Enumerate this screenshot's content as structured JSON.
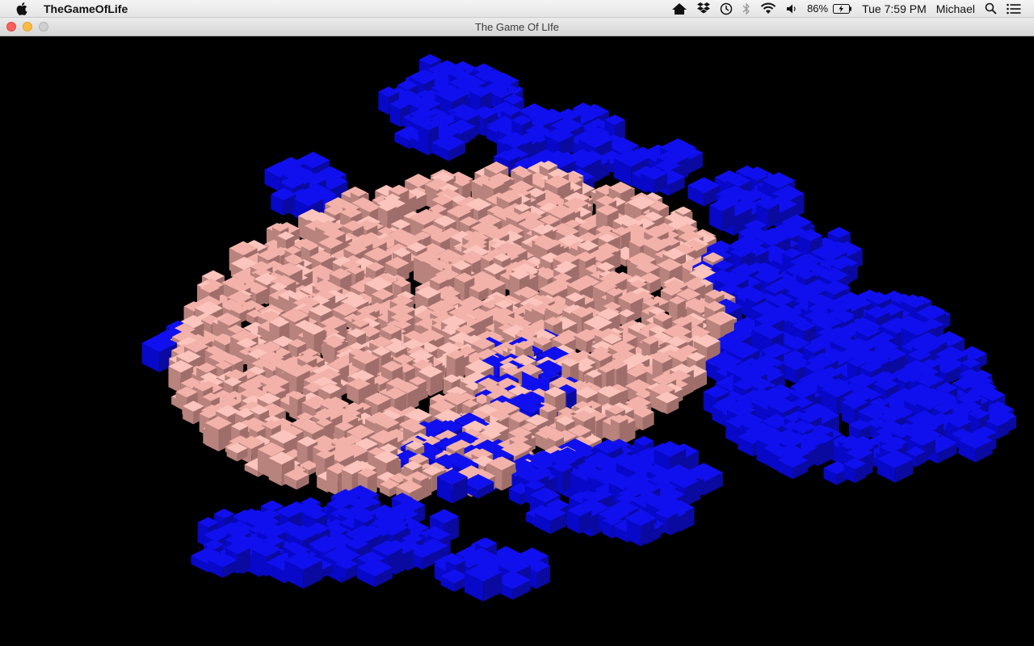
{
  "menubar": {
    "app_name": "TheGameOfLife",
    "battery_percent": "86%",
    "clock": "Tue 7:59 PM",
    "user": "Michael",
    "icons": [
      "apple-icon",
      "home-icon",
      "dropbox-icon",
      "time-machine-icon",
      "bluetooth-icon",
      "wifi-icon",
      "volume-icon",
      "battery-icon",
      "spotlight-search-icon",
      "notification-center-icon"
    ]
  },
  "window": {
    "title": "The Game Of LIfe"
  },
  "colors": {
    "background": "#000000",
    "live_cell": "#f2b2aa",
    "live_cell_shade": "#a06e6a",
    "new_cell": "#1010ee",
    "new_cell_shade": "#0a0aa0"
  }
}
